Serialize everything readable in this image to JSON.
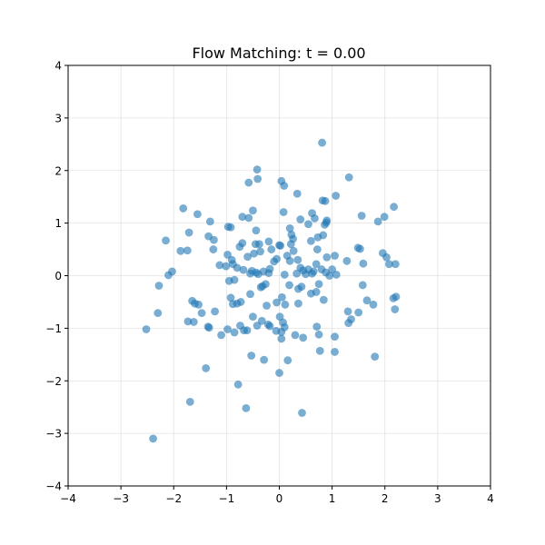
{
  "chart_data": {
    "type": "scatter",
    "title": "Flow Matching: t = 0.00",
    "xlabel": "",
    "ylabel": "",
    "xlim": [
      -4,
      4
    ],
    "ylim": [
      -4,
      4
    ],
    "xticks": [
      -4,
      -3,
      -2,
      -1,
      0,
      1,
      2,
      3,
      4
    ],
    "yticks": [
      -4,
      -3,
      -2,
      -1,
      0,
      1,
      2,
      3,
      4
    ],
    "xtick_labels": [
      "−4",
      "−3",
      "−2",
      "−1",
      "0",
      "1",
      "2",
      "3",
      "4"
    ],
    "ytick_labels": [
      "−4",
      "−3",
      "−2",
      "−1",
      "0",
      "1",
      "2",
      "3",
      "4"
    ],
    "grid": true,
    "marker_color": "#1f77b4",
    "points": [
      [
        -2.39,
        -3.1
      ],
      [
        -1.69,
        -2.4
      ],
      [
        -0.63,
        -2.52
      ],
      [
        -0.78,
        -2.07
      ],
      [
        0.43,
        -2.61
      ],
      [
        -1.39,
        -1.76
      ],
      [
        -0.53,
        -1.52
      ],
      [
        -0.29,
        -1.6
      ],
      [
        0.0,
        -1.85
      ],
      [
        0.16,
        -1.61
      ],
      [
        0.77,
        -1.43
      ],
      [
        1.05,
        -1.45
      ],
      [
        1.81,
        -1.54
      ],
      [
        -2.52,
        -1.02
      ],
      [
        -2.3,
        -0.71
      ],
      [
        -1.73,
        -0.87
      ],
      [
        -1.62,
        -0.88
      ],
      [
        -1.47,
        -0.71
      ],
      [
        -1.35,
        -0.97
      ],
      [
        -1.33,
        -0.99
      ],
      [
        -1.22,
        -0.68
      ],
      [
        -1.1,
        -1.13
      ],
      [
        -0.98,
        -1.02
      ],
      [
        -0.85,
        -1.08
      ],
      [
        -0.74,
        -0.95
      ],
      [
        -0.67,
        -1.04
      ],
      [
        -0.61,
        -1.04
      ],
      [
        -0.5,
        -0.78
      ],
      [
        -0.42,
        -0.95
      ],
      [
        -0.33,
        -0.86
      ],
      [
        -0.21,
        -0.93
      ],
      [
        -0.18,
        -0.96
      ],
      [
        -0.06,
        -1.05
      ],
      [
        0.01,
        -0.78
      ],
      [
        0.04,
        -1.07
      ],
      [
        0.07,
        -0.89
      ],
      [
        0.1,
        -0.98
      ],
      [
        0.04,
        -1.2
      ],
      [
        0.3,
        -1.13
      ],
      [
        0.45,
        -1.18
      ],
      [
        0.71,
        -0.97
      ],
      [
        0.75,
        -1.12
      ],
      [
        1.05,
        -1.16
      ],
      [
        1.31,
        -0.9
      ],
      [
        1.36,
        -0.83
      ],
      [
        1.3,
        -0.68
      ],
      [
        1.5,
        -0.7
      ],
      [
        1.78,
        -0.55
      ],
      [
        2.19,
        -0.64
      ],
      [
        2.21,
        -0.4
      ],
      [
        2.16,
        -0.43
      ],
      [
        1.66,
        -0.47
      ],
      [
        1.58,
        -0.18
      ],
      [
        -1.65,
        -0.48
      ],
      [
        -1.6,
        -0.53
      ],
      [
        -1.53,
        -0.55
      ],
      [
        -0.92,
        -0.42
      ],
      [
        -0.88,
        -0.54
      ],
      [
        -0.8,
        -0.53
      ],
      [
        -0.73,
        -0.5
      ],
      [
        -0.55,
        -0.35
      ],
      [
        -0.35,
        -0.22
      ],
      [
        -0.24,
        -0.57
      ],
      [
        -0.05,
        -0.51
      ],
      [
        0.05,
        -0.41
      ],
      [
        0.11,
        -0.55
      ],
      [
        0.19,
        -0.18
      ],
      [
        0.36,
        -0.25
      ],
      [
        0.36,
        -0.53
      ],
      [
        0.42,
        -0.21
      ],
      [
        0.6,
        -0.34
      ],
      [
        0.7,
        -0.31
      ],
      [
        0.84,
        -0.46
      ],
      [
        -2.28,
        -0.19
      ],
      [
        -2.1,
        0.01
      ],
      [
        -2.03,
        0.08
      ],
      [
        -1.25,
        0.5
      ],
      [
        -1.13,
        0.2
      ],
      [
        -1.01,
        0.18
      ],
      [
        -0.98,
        0.4
      ],
      [
        -0.95,
        -0.1
      ],
      [
        -0.9,
        0.3
      ],
      [
        -0.88,
        0.22
      ],
      [
        -0.85,
        -0.08
      ],
      [
        -0.8,
        0.15
      ],
      [
        -0.75,
        0.55
      ],
      [
        -0.7,
        0.62
      ],
      [
        -0.68,
        0.11
      ],
      [
        -0.6,
        0.36
      ],
      [
        -0.55,
        0.04
      ],
      [
        -0.52,
        0.09
      ],
      [
        -0.48,
        0.42
      ],
      [
        -0.45,
        0.6
      ],
      [
        -0.44,
        0.06
      ],
      [
        -0.4,
        0.03
      ],
      [
        -0.36,
        0.46
      ],
      [
        -0.32,
        -0.2
      ],
      [
        -0.26,
        -0.16
      ],
      [
        -0.2,
        0.05
      ],
      [
        -0.18,
        0.13
      ],
      [
        -0.15,
        0.5
      ],
      [
        -0.1,
        0.27
      ],
      [
        -0.05,
        0.32
      ],
      [
        0.0,
        0.58
      ],
      [
        0.02,
        0.57
      ],
      [
        0.1,
        0.02
      ],
      [
        0.15,
        0.38
      ],
      [
        0.2,
        0.28
      ],
      [
        0.22,
        0.6
      ],
      [
        0.27,
        0.47
      ],
      [
        0.33,
        0.04
      ],
      [
        0.35,
        0.3
      ],
      [
        0.4,
        0.15
      ],
      [
        0.45,
        0.1
      ],
      [
        0.5,
        0.03
      ],
      [
        0.55,
        0.12
      ],
      [
        0.6,
        0.66
      ],
      [
        0.62,
        0.04
      ],
      [
        0.65,
        0.08
      ],
      [
        0.7,
        0.22
      ],
      [
        0.72,
        0.5
      ],
      [
        0.75,
        -0.16
      ],
      [
        0.8,
        0.12
      ],
      [
        0.88,
        0.06
      ],
      [
        0.9,
        0.35
      ],
      [
        0.95,
        0.0
      ],
      [
        1.0,
        0.12
      ],
      [
        1.05,
        0.38
      ],
      [
        1.08,
        0.02
      ],
      [
        1.28,
        0.28
      ],
      [
        1.49,
        0.53
      ],
      [
        1.53,
        0.51
      ],
      [
        1.59,
        0.23
      ],
      [
        1.87,
        1.03
      ],
      [
        1.96,
        0.43
      ],
      [
        2.03,
        0.35
      ],
      [
        2.08,
        0.22
      ],
      [
        2.2,
        0.22
      ],
      [
        -1.71,
        0.82
      ],
      [
        -1.87,
        0.47
      ],
      [
        -1.74,
        0.48
      ],
      [
        -2.15,
        0.67
      ],
      [
        -1.82,
        1.28
      ],
      [
        -1.55,
        1.17
      ],
      [
        -1.34,
        0.75
      ],
      [
        -1.31,
        1.03
      ],
      [
        -1.24,
        0.68
      ],
      [
        -0.97,
        0.93
      ],
      [
        -0.92,
        0.92
      ],
      [
        -0.7,
        1.12
      ],
      [
        -0.58,
        1.1
      ],
      [
        -0.5,
        1.24
      ],
      [
        -0.44,
        0.86
      ],
      [
        -0.38,
        0.6
      ],
      [
        -0.2,
        0.65
      ],
      [
        -0.3,
        0.08
      ],
      [
        0.08,
        1.21
      ],
      [
        0.2,
        0.9
      ],
      [
        0.23,
        0.78
      ],
      [
        0.26,
        0.7
      ],
      [
        0.4,
        1.07
      ],
      [
        0.55,
        0.98
      ],
      [
        0.62,
        1.19
      ],
      [
        0.67,
        1.09
      ],
      [
        0.73,
        0.73
      ],
      [
        0.83,
        0.77
      ],
      [
        0.86,
        0.97
      ],
      [
        0.89,
        1.01
      ],
      [
        0.9,
        1.05
      ],
      [
        1.07,
        1.52
      ],
      [
        1.56,
        1.14
      ],
      [
        1.99,
        1.12
      ],
      [
        2.17,
        1.31
      ],
      [
        0.34,
        1.56
      ],
      [
        0.87,
        1.42
      ],
      [
        0.82,
        1.43
      ],
      [
        1.32,
        1.87
      ],
      [
        -0.58,
        1.77
      ],
      [
        -0.41,
        1.84
      ],
      [
        -0.42,
        2.02
      ],
      [
        0.04,
        1.8
      ],
      [
        0.09,
        1.71
      ],
      [
        0.81,
        2.53
      ]
    ]
  }
}
